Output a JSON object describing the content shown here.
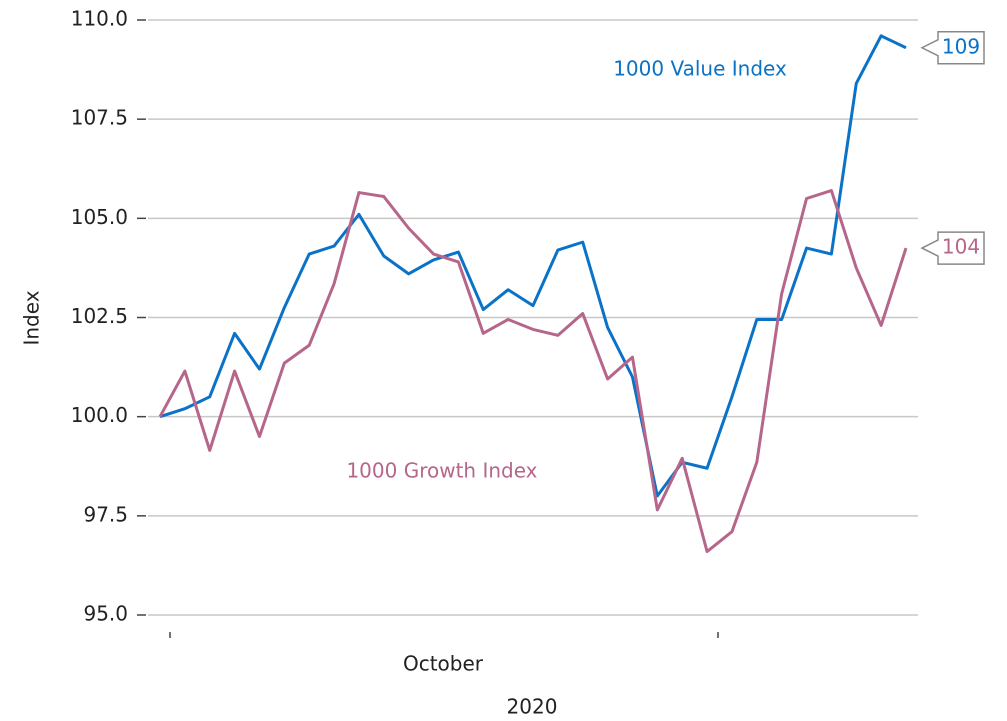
{
  "chart_data": {
    "type": "line",
    "y_label": "Index",
    "x_label": "October",
    "x_sublabel": "2020",
    "categories": [
      null,
      null,
      null,
      null,
      null,
      null,
      null,
      null,
      null,
      null,
      null,
      null,
      null,
      null,
      null,
      null,
      null,
      null,
      null,
      null,
      null,
      null,
      null,
      null,
      null,
      null,
      null,
      null,
      null,
      null,
      null
    ],
    "series": [
      {
        "name": "1000 Value Index",
        "color": "#0a72c7",
        "end_label": "109",
        "values": [
          100.0,
          100.2,
          100.5,
          102.1,
          101.2,
          102.75,
          104.1,
          104.3,
          105.1,
          104.05,
          103.6,
          103.95,
          104.15,
          102.7,
          103.2,
          102.8,
          104.2,
          104.4,
          102.25,
          101.0,
          98.0,
          98.85,
          98.7,
          100.5,
          102.45,
          102.45,
          104.25,
          104.1,
          108.4,
          109.6,
          109.3
        ]
      },
      {
        "name": "1000 Growth Index",
        "color": "#b5668a",
        "end_label": "104",
        "values": [
          100.0,
          101.15,
          99.15,
          101.15,
          99.5,
          101.35,
          101.8,
          103.35,
          105.65,
          105.55,
          104.75,
          104.1,
          103.9,
          102.1,
          102.45,
          102.2,
          102.05,
          102.6,
          100.95,
          101.5,
          97.65,
          98.95,
          96.6,
          97.1,
          98.85,
          103.1,
          105.5,
          105.7,
          103.75,
          102.3,
          104.25
        ]
      }
    ],
    "ylim": [
      95,
      110
    ],
    "yticks": [
      {
        "value": 95,
        "label": "95.0"
      },
      {
        "value": 97.5,
        "label": "97.5"
      },
      {
        "value": 100,
        "label": "100.0"
      },
      {
        "value": 102.5,
        "label": "102.5"
      },
      {
        "value": 105,
        "label": "105.0"
      },
      {
        "value": 107.5,
        "label": "107.5"
      },
      {
        "value": 110,
        "label": "110.0"
      }
    ],
    "grid": true
  }
}
